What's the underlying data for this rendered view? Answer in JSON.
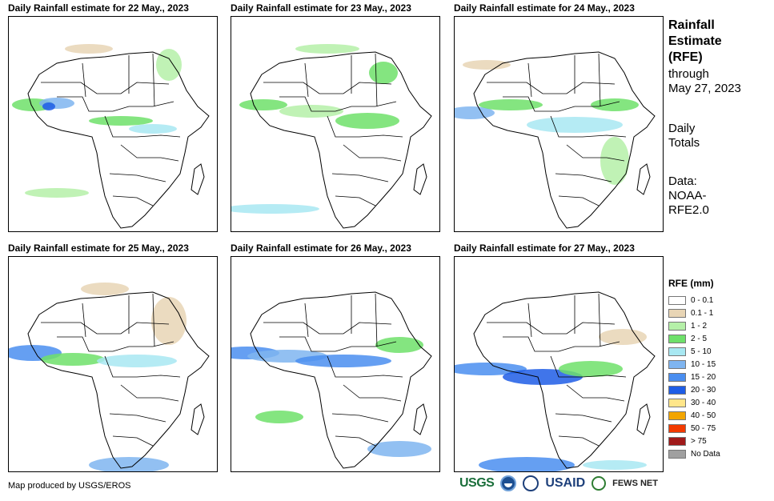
{
  "panels": [
    {
      "title": "Daily Rainfall estimate for 22 May., 2023"
    },
    {
      "title": "Daily Rainfall estimate for 23 May., 2023"
    },
    {
      "title": "Daily Rainfall estimate for 24 May., 2023"
    },
    {
      "title": "Daily Rainfall estimate for 25 May., 2023"
    },
    {
      "title": "Daily Rainfall estimate for 26 May., 2023"
    },
    {
      "title": "Daily Rainfall estimate for 27 May., 2023"
    }
  ],
  "sidebar": {
    "title_lines": [
      "Rainfall",
      "Estimate",
      "(RFE)"
    ],
    "through": "through",
    "through_date": "May 27, 2023",
    "totals_lines": [
      "Daily",
      "Totals"
    ],
    "data_lines": [
      "Data:",
      "NOAA-",
      "RFE2.0"
    ]
  },
  "legend": {
    "title": "RFE (mm)",
    "items": [
      {
        "label": "0 - 0.1",
        "color": "#ffffff"
      },
      {
        "label": "0.1 - 1",
        "color": "#e8d5b5"
      },
      {
        "label": "1 - 2",
        "color": "#b5f0a8"
      },
      {
        "label": "2 - 5",
        "color": "#6ee06a"
      },
      {
        "label": "5 - 10",
        "color": "#a8e8f2"
      },
      {
        "label": "10 - 15",
        "color": "#7fb5f0"
      },
      {
        "label": "15 - 20",
        "color": "#4a8ef0"
      },
      {
        "label": "20 - 30",
        "color": "#1e5de6"
      },
      {
        "label": "30 - 40",
        "color": "#ffe68a"
      },
      {
        "label": "40 - 50",
        "color": "#f2a500"
      },
      {
        "label": "50 - 75",
        "color": "#f23a00"
      },
      {
        "label": "> 75",
        "color": "#a01a1a"
      },
      {
        "label": "No Data",
        "color": "#a0a0a0"
      }
    ]
  },
  "footer": {
    "credit": "Map produced by USGS/EROS"
  },
  "logos": {
    "usgs": "USGS",
    "usaid": "USAID",
    "fews": "FEWS NET"
  }
}
